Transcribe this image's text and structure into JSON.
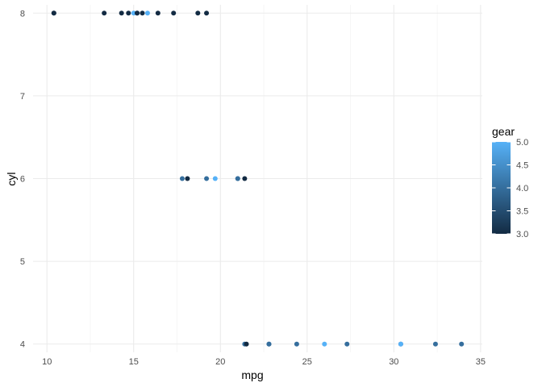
{
  "chart_data": {
    "type": "scatter",
    "xlabel": "mpg",
    "ylabel": "cyl",
    "xlim": [
      9.2,
      35.1
    ],
    "ylim": [
      3.9,
      8.1
    ],
    "x_ticks": [
      10,
      15,
      20,
      25,
      30,
      35
    ],
    "x_tick_labels": [
      "10",
      "15",
      "20",
      "25",
      "30",
      "35"
    ],
    "x_minor_ticks": [
      12.5,
      17.5,
      22.5,
      27.5,
      32.5
    ],
    "y_ticks": [
      4,
      5,
      6,
      7,
      8
    ],
    "y_tick_labels": [
      "4",
      "5",
      "6",
      "7",
      "8"
    ],
    "grid": true,
    "legend": {
      "title": "gear",
      "placement": "right",
      "range": [
        3.0,
        5.0
      ],
      "labels": [
        "5.0",
        "4.5",
        "4.0",
        "3.5",
        "3.0"
      ],
      "color_low": "#132B43",
      "color_high": "#56B1F7"
    },
    "points": [
      {
        "x": 10.4,
        "y": 8,
        "gear": 3
      },
      {
        "x": 10.4,
        "y": 8,
        "gear": 3
      },
      {
        "x": 13.3,
        "y": 8,
        "gear": 3
      },
      {
        "x": 14.3,
        "y": 8,
        "gear": 3
      },
      {
        "x": 14.7,
        "y": 8,
        "gear": 3
      },
      {
        "x": 15.0,
        "y": 8,
        "gear": 5
      },
      {
        "x": 15.2,
        "y": 8,
        "gear": 3
      },
      {
        "x": 15.2,
        "y": 8,
        "gear": 3
      },
      {
        "x": 15.5,
        "y": 8,
        "gear": 3
      },
      {
        "x": 15.8,
        "y": 8,
        "gear": 5
      },
      {
        "x": 16.4,
        "y": 8,
        "gear": 3
      },
      {
        "x": 17.3,
        "y": 8,
        "gear": 3
      },
      {
        "x": 18.7,
        "y": 8,
        "gear": 3
      },
      {
        "x": 19.2,
        "y": 8,
        "gear": 3
      },
      {
        "x": 17.8,
        "y": 6,
        "gear": 4
      },
      {
        "x": 18.1,
        "y": 6,
        "gear": 3
      },
      {
        "x": 19.2,
        "y": 6,
        "gear": 4
      },
      {
        "x": 19.7,
        "y": 6,
        "gear": 5
      },
      {
        "x": 21.0,
        "y": 6,
        "gear": 4
      },
      {
        "x": 21.0,
        "y": 6,
        "gear": 4
      },
      {
        "x": 21.4,
        "y": 6,
        "gear": 3
      },
      {
        "x": 21.4,
        "y": 4,
        "gear": 4
      },
      {
        "x": 21.5,
        "y": 4,
        "gear": 3
      },
      {
        "x": 22.8,
        "y": 4,
        "gear": 4
      },
      {
        "x": 22.8,
        "y": 4,
        "gear": 4
      },
      {
        "x": 24.4,
        "y": 4,
        "gear": 4
      },
      {
        "x": 26.0,
        "y": 4,
        "gear": 5
      },
      {
        "x": 27.3,
        "y": 4,
        "gear": 4
      },
      {
        "x": 30.4,
        "y": 4,
        "gear": 4
      },
      {
        "x": 30.4,
        "y": 4,
        "gear": 5
      },
      {
        "x": 32.4,
        "y": 4,
        "gear": 4
      },
      {
        "x": 33.9,
        "y": 4,
        "gear": 4
      }
    ]
  }
}
